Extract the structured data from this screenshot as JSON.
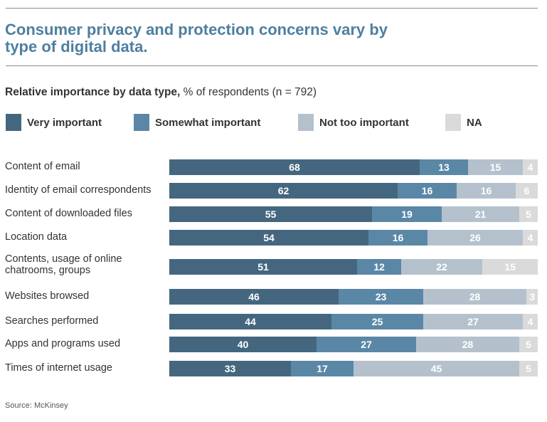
{
  "title": "Consumer privacy and protection concerns vary by type of digital data.",
  "subtitle_bold": "Relative importance by data type,",
  "subtitle_rest": " % of respondents (n = 792)",
  "source": "Source: McKinsey",
  "chart_data": {
    "type": "bar",
    "orientation": "horizontal",
    "stacked": true,
    "categories": [
      "Content of email",
      "Identity of email correspondents",
      "Content of downloaded files",
      "Location data",
      "Contents, usage of online chatrooms, groups",
      "Websites browsed",
      "Searches performed",
      "Apps and programs used",
      "Times of internet usage"
    ],
    "series": [
      {
        "name": "Very important",
        "color": "#44677f",
        "values": [
          68,
          62,
          55,
          54,
          51,
          46,
          44,
          40,
          33
        ]
      },
      {
        "name": "Somewhat important",
        "color": "#5b87a6",
        "values": [
          13,
          16,
          19,
          16,
          12,
          23,
          25,
          27,
          17
        ]
      },
      {
        "name": "Not too important",
        "color": "#b4c1cd",
        "values": [
          15,
          16,
          21,
          26,
          22,
          28,
          27,
          28,
          45
        ]
      },
      {
        "name": "NA",
        "color": "#dadada",
        "values": [
          4,
          6,
          5,
          4,
          15,
          3,
          4,
          5,
          5
        ]
      }
    ],
    "legend_position": "top",
    "grid": false
  }
}
